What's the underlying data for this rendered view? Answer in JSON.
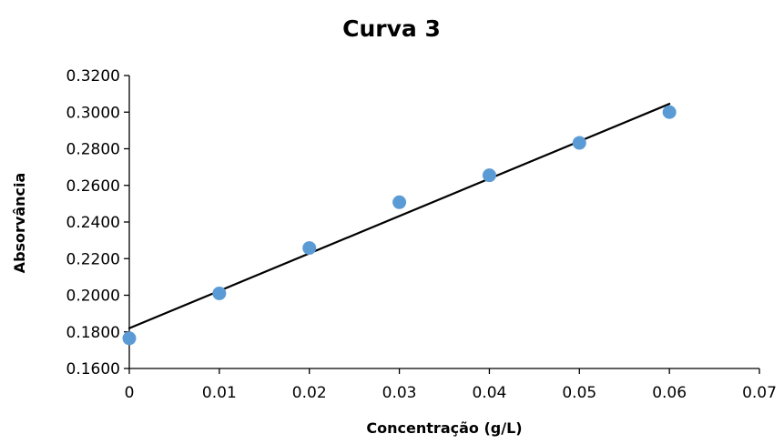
{
  "chart_data": {
    "type": "scatter",
    "title": "Curva 3",
    "xlabel": "Concentração (g/L)",
    "ylabel": "Absorvância",
    "xlim": [
      0,
      0.07
    ],
    "ylim": [
      0.16,
      0.32
    ],
    "x_ticks": [
      "0",
      "0.01",
      "0.02",
      "0.03",
      "0.04",
      "0.05",
      "0.06",
      "0.07"
    ],
    "y_ticks": [
      "0.1600",
      "0.1800",
      "0.2000",
      "0.2200",
      "0.2400",
      "0.2600",
      "0.2800",
      "0.3000",
      "0.3200"
    ],
    "grid": false,
    "legend": "none",
    "series": [
      {
        "x": [
          0,
          0.01,
          0.02,
          0.03,
          0.04,
          0.05,
          0.06
        ],
        "y": [
          0.1765,
          0.201,
          0.2258,
          0.2508,
          0.2655,
          0.2832,
          0.3
        ],
        "color": "#5B9BD5"
      }
    ],
    "trendline": {
      "type": "linear",
      "x": [
        0,
        0.06
      ],
      "y": [
        0.182,
        0.3045
      ],
      "color": "#000000"
    }
  }
}
